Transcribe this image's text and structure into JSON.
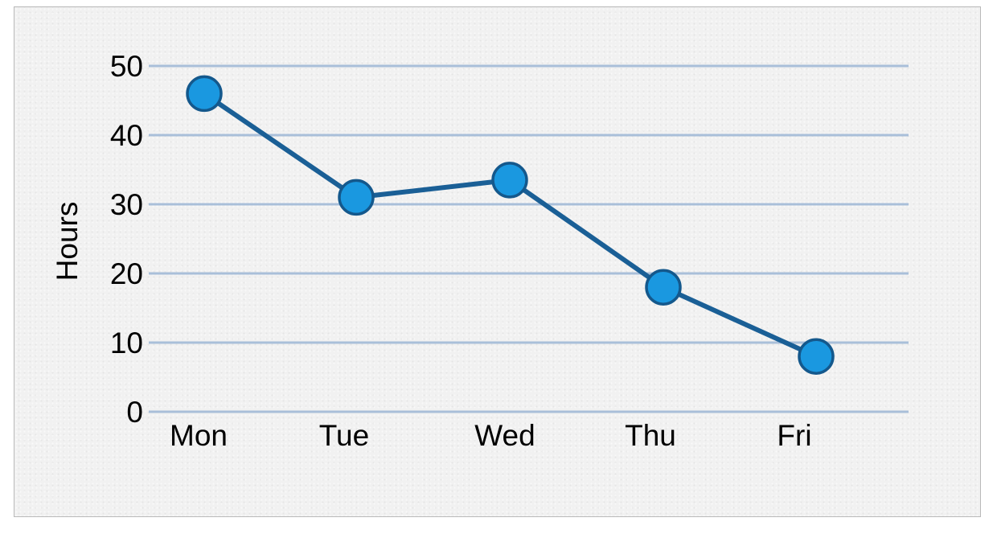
{
  "chart_data": {
    "type": "line",
    "title": "",
    "xlabel": "",
    "ylabel": "Hours",
    "categories": [
      "Mon",
      "Tue",
      "Wed",
      "Thu",
      "Fri"
    ],
    "series": [
      {
        "values": [
          46,
          31,
          33.5,
          18,
          8
        ]
      }
    ],
    "ylim": [
      0,
      50
    ],
    "yticks": [
      "0",
      "10",
      "20",
      "30",
      "40",
      "50"
    ],
    "grid": true,
    "legend": "none",
    "colors": {
      "line": "#1a5f96",
      "marker_fill": "#1a98e0",
      "marker_stroke": "#14588c",
      "grid": "#a9bfd9"
    }
  }
}
